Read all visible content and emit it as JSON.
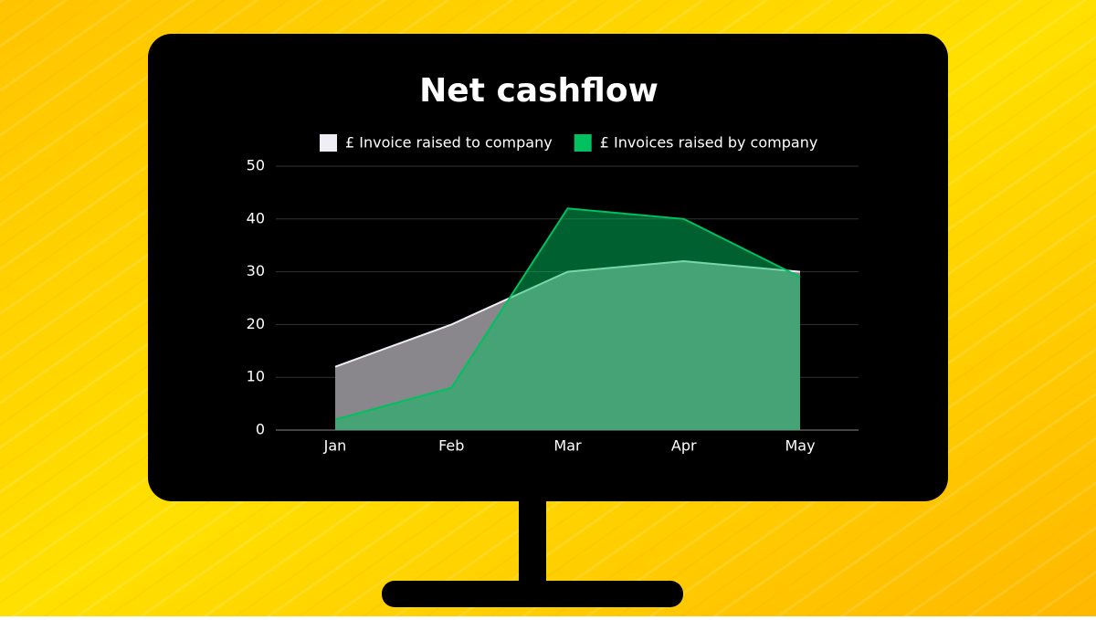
{
  "chart_data": {
    "type": "area",
    "title": "Net cashflow",
    "categories": [
      "Jan",
      "Feb",
      "Mar",
      "Apr",
      "May"
    ],
    "series": [
      {
        "name": "£ Invoice raised to company",
        "color": "#f0eef5",
        "values": [
          12,
          20,
          30,
          32,
          30
        ]
      },
      {
        "name": "£ Invoices raised by company",
        "color": "#00c060",
        "values": [
          2,
          8,
          42,
          40,
          29
        ]
      }
    ],
    "ylim": [
      0,
      50
    ],
    "yticks": [
      0,
      10,
      20,
      30,
      40,
      50
    ],
    "grid": true,
    "legend": "top"
  }
}
